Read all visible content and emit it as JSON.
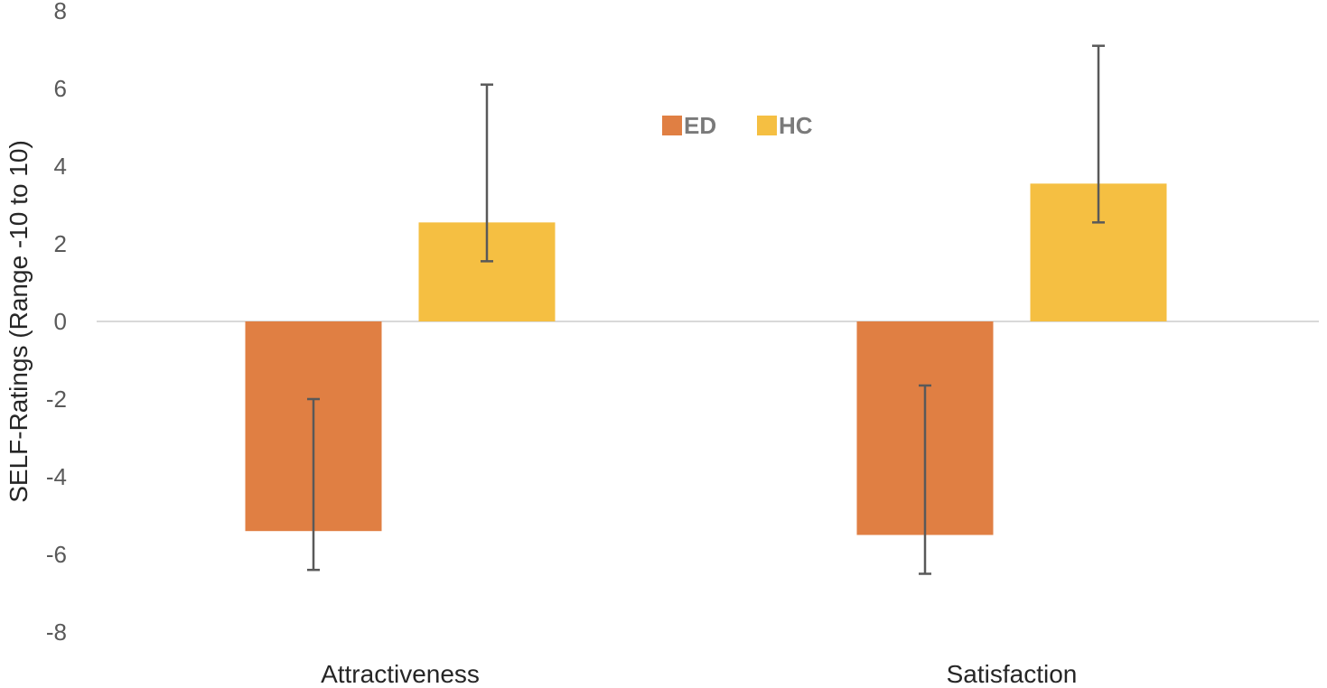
{
  "chart_data": {
    "type": "bar",
    "title": "",
    "xlabel": "",
    "ylabel": "SELF-Ratings (Range -10 to 10)",
    "ylim": [
      -8,
      8
    ],
    "yticks": [
      "8",
      "6",
      "4",
      "2",
      "0",
      "-2",
      "-4",
      "-6",
      "-8"
    ],
    "categories": [
      "Attractiveness",
      "Satisfaction"
    ],
    "series": [
      {
        "name": "ED",
        "color": "#E07F43",
        "values": [
          -5.4,
          -5.5
        ],
        "error_low": [
          -6.4,
          -6.5
        ],
        "error_high": [
          -2.0,
          -1.65
        ]
      },
      {
        "name": "HC",
        "color": "#F5BF42",
        "values": [
          2.55,
          3.55
        ],
        "error_low": [
          1.55,
          2.55
        ],
        "error_high": [
          6.1,
          7.1
        ]
      }
    ],
    "grid": false,
    "legend_position": "top-center"
  }
}
